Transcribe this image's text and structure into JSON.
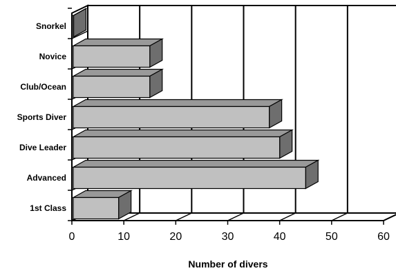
{
  "chart_data": {
    "type": "bar",
    "orientation": "horizontal",
    "style": "3d",
    "categories": [
      "Snorkel",
      "Novice",
      "Club/Ocean",
      "Sports Diver",
      "Dive Leader",
      "Advanced",
      "1st Class"
    ],
    "values": [
      0,
      15,
      15,
      38,
      40,
      45,
      9
    ],
    "xlabel": "Number of divers",
    "ylabel": "",
    "title": "",
    "xlim": [
      0,
      60
    ],
    "x_ticks": [
      "0",
      "10",
      "20",
      "30",
      "40",
      "50",
      "60"
    ],
    "grid": "vertical",
    "legend": "none",
    "colors": {
      "bar_front": "#c0c0c0",
      "bar_top": "#999999",
      "bar_side": "#6e6e6e",
      "outline": "#000000",
      "wall": "#ffffff"
    }
  }
}
